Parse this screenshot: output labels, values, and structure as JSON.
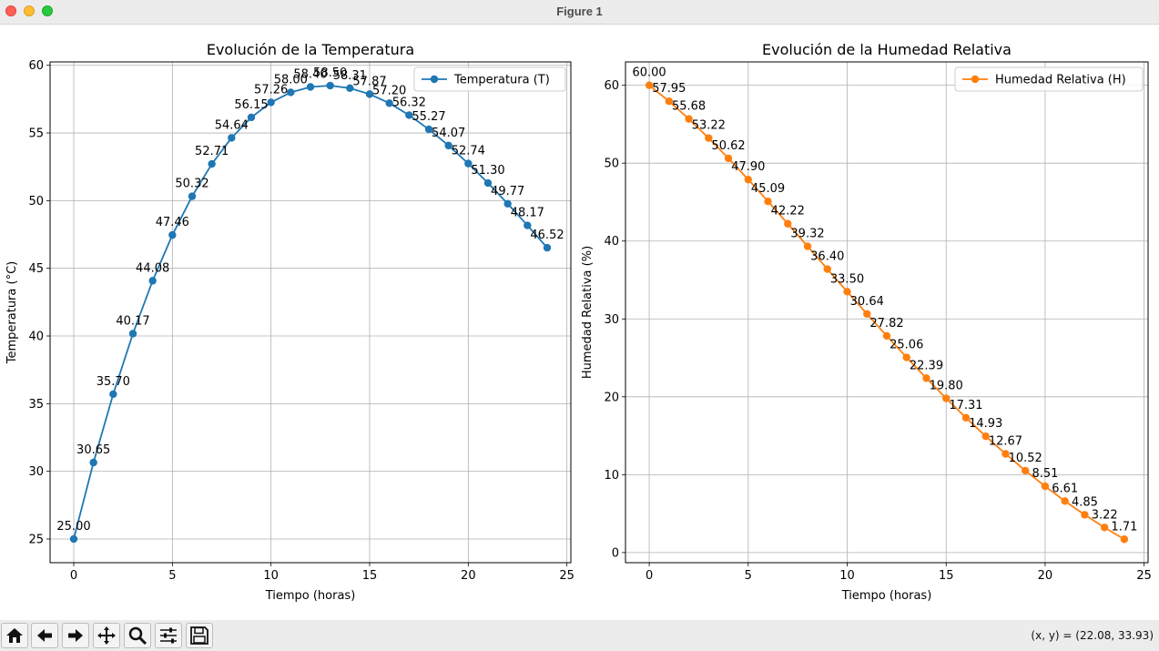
{
  "window": {
    "title": "Figure 1"
  },
  "toolbar": {
    "buttons": [
      "home-icon",
      "back-arrow-icon",
      "forward-arrow-icon",
      "pan-icon",
      "zoom-icon",
      "configure-subplots-icon",
      "save-icon"
    ],
    "coords": "(x, y) = (22.08, 33.93)"
  },
  "chart_data": [
    {
      "type": "line",
      "title": "Evolución de la Temperatura",
      "xlabel": "Tiempo (horas)",
      "ylabel": "Temperatura (°C)",
      "xlim": [
        -1.2,
        25.2
      ],
      "ylim": [
        23.25,
        60.25
      ],
      "xticks": [
        0,
        5,
        10,
        15,
        20,
        25
      ],
      "yticks": [
        25,
        30,
        35,
        40,
        45,
        50,
        55,
        60
      ],
      "grid": true,
      "legend": "top-right",
      "color": "#1f77b4",
      "series": [
        {
          "name": "Temperatura (T)",
          "x": [
            0,
            1,
            2,
            3,
            4,
            5,
            6,
            7,
            8,
            9,
            10,
            11,
            12,
            13,
            14,
            15,
            16,
            17,
            18,
            19,
            20,
            21,
            22,
            23,
            24
          ],
          "values": [
            25.0,
            30.65,
            35.7,
            40.17,
            44.08,
            47.46,
            50.32,
            52.71,
            54.64,
            56.15,
            57.26,
            58.0,
            58.4,
            58.5,
            58.31,
            57.87,
            57.2,
            56.32,
            55.27,
            54.07,
            52.74,
            51.3,
            49.77,
            48.17,
            46.52
          ],
          "labels": [
            "25.00",
            "30.65",
            "35.70",
            "40.17",
            "44.08",
            "47.46",
            "50.32",
            "52.71",
            "54.64",
            "56.15",
            "57.26",
            "58.00",
            "58.40",
            "58.50",
            "58.31",
            "57.87",
            "57.20",
            "56.32",
            "55.27",
            "54.07",
            "52.74",
            "51.30",
            "49.77",
            "48.17",
            "46.52"
          ]
        }
      ]
    },
    {
      "type": "line",
      "title": "Evolución de la Humedad Relativa",
      "xlabel": "Tiempo (horas)",
      "ylabel": "Humedad Relativa (%)",
      "xlim": [
        -1.2,
        25.2
      ],
      "ylim": [
        -1.3,
        63.0
      ],
      "xticks": [
        0,
        5,
        10,
        15,
        20,
        25
      ],
      "yticks": [
        0,
        10,
        20,
        30,
        40,
        50,
        60
      ],
      "grid": true,
      "legend": "top-right",
      "color": "#ff7f0e",
      "series": [
        {
          "name": "Humedad Relativa (H)",
          "x": [
            0,
            1,
            2,
            3,
            4,
            5,
            6,
            7,
            8,
            9,
            10,
            11,
            12,
            13,
            14,
            15,
            16,
            17,
            18,
            19,
            20,
            21,
            22,
            23,
            24
          ],
          "values": [
            60.0,
            57.95,
            55.68,
            53.22,
            50.62,
            47.9,
            45.09,
            42.22,
            39.32,
            36.4,
            33.5,
            30.64,
            27.82,
            25.06,
            22.39,
            19.8,
            17.31,
            14.93,
            12.67,
            10.52,
            8.51,
            6.61,
            4.85,
            3.22,
            1.71
          ],
          "labels": [
            "60.00",
            "57.95",
            "55.68",
            "53.22",
            "50.62",
            "47.90",
            "45.09",
            "42.22",
            "39.32",
            "36.40",
            "33.50",
            "30.64",
            "27.82",
            "25.06",
            "22.39",
            "19.80",
            "17.31",
            "14.93",
            "12.67",
            "10.52",
            "8.51",
            "6.61",
            "4.85",
            "3.22",
            "1.71"
          ]
        }
      ]
    }
  ]
}
